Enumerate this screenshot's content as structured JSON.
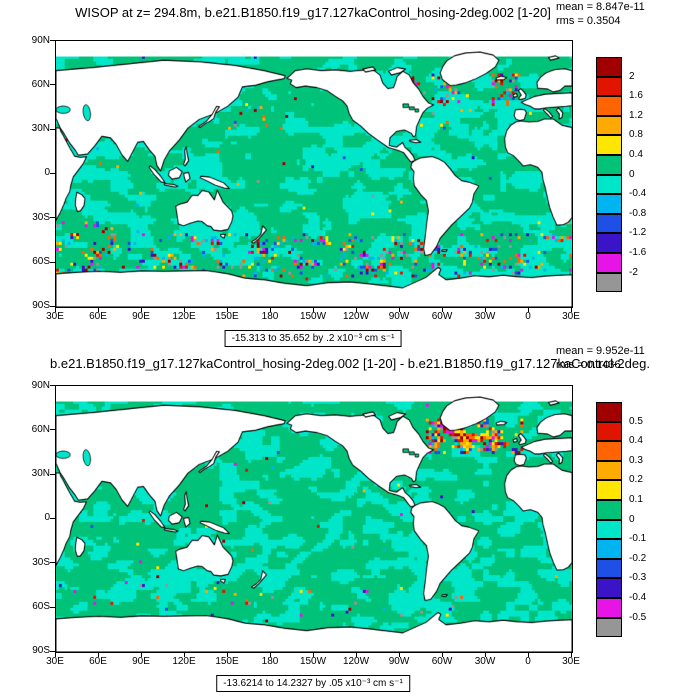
{
  "page": {
    "background": "#ffffff"
  },
  "chart_data": [
    {
      "type": "heatmap",
      "layout": "global cylindrical map, lon 30E eastward around to 30E, lat 90S to 90N, filled contours, labelbar right",
      "title": "WISOP at z= 294.8m, b.e21.B1850.f19_g17.127kaControl_hosing-2deg.002 [1-20]",
      "mean_label": "mean = 8.847e-11",
      "rms_label": "rms = 0.3504",
      "range_label": "-15.313 to 35.652 by .2 x10⁻³ cm s⁻¹",
      "xticks": [
        "30E",
        "60E",
        "90E",
        "120E",
        "150E",
        "180",
        "150W",
        "120W",
        "90W",
        "60W",
        "30W",
        "0",
        "30E"
      ],
      "yticks": [
        "90N",
        "60N",
        "30N",
        "0",
        "30S",
        "60S",
        "90S"
      ],
      "colorbar": {
        "labels": [
          "2",
          "1.6",
          "1.2",
          "0.8",
          "0.4",
          "0",
          "-0.4",
          "-0.8",
          "-1.2",
          "-1.6",
          "-2"
        ],
        "colors": [
          "#a00000",
          "#e11400",
          "#ff6400",
          "#ffaa00",
          "#ffe600",
          "#00c278",
          "#00e6c8",
          "#00b4f0",
          "#1e50e6",
          "#3c14c8",
          "#e614e6",
          "#969696"
        ]
      },
      "field_summary": {
        "dominant_positive": "#00c278",
        "dominant_negative": "#00e6c8",
        "land": "#ffffff",
        "coastline": "#000000"
      }
    },
    {
      "type": "heatmap",
      "layout": "global cylindrical map, lon 30E eastward around to 30E, lat 90S to 90N, filled contours, labelbar right",
      "title": "b.e21.B1850.f19_g17.127kaControl_hosing-2deg.002 [1-20] - b.e21.B1850.f19_g17.127kaControl-2deg.",
      "mean_label": "mean = 9.952e-11",
      "rms_label": "rms = 0.1436",
      "range_label": "-13.6214 to 14.2327 by .05 x10⁻³ cm s⁻¹",
      "xticks": [
        "30E",
        "60E",
        "90E",
        "120E",
        "150E",
        "180",
        "150W",
        "120W",
        "90W",
        "60W",
        "30W",
        "0",
        "30E"
      ],
      "yticks": [
        "90N",
        "60N",
        "30N",
        "0",
        "30S",
        "60S",
        "90S"
      ],
      "colorbar": {
        "labels": [
          "0.5",
          "0.4",
          "0.3",
          "0.2",
          "0.1",
          "0",
          "-0.1",
          "-0.2",
          "-0.3",
          "-0.4",
          "-0.5"
        ],
        "colors": [
          "#a00000",
          "#e11400",
          "#ff6400",
          "#ffaa00",
          "#ffe600",
          "#00c278",
          "#00e6c8",
          "#00b4f0",
          "#1e50e6",
          "#3c14c8",
          "#e614e6",
          "#969696"
        ]
      },
      "field_summary": {
        "dominant_positive": "#00c278",
        "dominant_negative": "#00e6c8",
        "land": "#ffffff",
        "coastline": "#000000"
      }
    }
  ]
}
